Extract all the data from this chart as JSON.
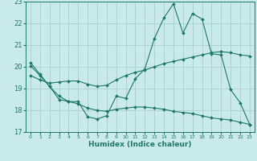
{
  "xlabel": "Humidex (Indice chaleur)",
  "background_color": "#c8eaea",
  "grid_color": "#a8cece",
  "line_color": "#1e7868",
  "xlim": [
    -0.5,
    23.5
  ],
  "ylim": [
    17,
    23
  ],
  "yticks": [
    17,
    18,
    19,
    20,
    21,
    22,
    23
  ],
  "xticks": [
    0,
    1,
    2,
    3,
    4,
    5,
    6,
    7,
    8,
    9,
    10,
    11,
    12,
    13,
    14,
    15,
    16,
    17,
    18,
    19,
    20,
    21,
    22,
    23
  ],
  "curve1_x": [
    0,
    1,
    2,
    3,
    4,
    5,
    6,
    7,
    8,
    9,
    10,
    11,
    12,
    13,
    14,
    15,
    16,
    17,
    18,
    19,
    20,
    21,
    22,
    23
  ],
  "curve1_y": [
    20.2,
    19.65,
    19.1,
    18.5,
    18.4,
    18.4,
    17.7,
    17.6,
    17.75,
    18.65,
    18.55,
    19.45,
    19.9,
    21.3,
    22.25,
    22.9,
    21.55,
    22.45,
    22.2,
    20.6,
    20.55,
    18.95,
    18.35,
    17.35
  ],
  "curve2_x": [
    0,
    1,
    2,
    3,
    4,
    5,
    6,
    7,
    8,
    9,
    10,
    11,
    12,
    13,
    14,
    15,
    16,
    17,
    18,
    19,
    20,
    21,
    22,
    23
  ],
  "curve2_y": [
    19.6,
    19.4,
    19.25,
    19.3,
    19.35,
    19.35,
    19.2,
    19.1,
    19.15,
    19.4,
    19.6,
    19.75,
    19.85,
    20.0,
    20.15,
    20.25,
    20.35,
    20.45,
    20.55,
    20.65,
    20.7,
    20.65,
    20.55,
    20.5
  ],
  "curve3_x": [
    0,
    1,
    2,
    3,
    4,
    5,
    6,
    7,
    8,
    9,
    10,
    11,
    12,
    13,
    14,
    15,
    16,
    17,
    18,
    19,
    20,
    21,
    22,
    23
  ],
  "curve3_y": [
    20.05,
    19.6,
    19.1,
    18.65,
    18.4,
    18.3,
    18.1,
    18.0,
    17.95,
    18.05,
    18.1,
    18.15,
    18.15,
    18.1,
    18.05,
    17.95,
    17.9,
    17.85,
    17.75,
    17.65,
    17.6,
    17.55,
    17.45,
    17.35
  ]
}
